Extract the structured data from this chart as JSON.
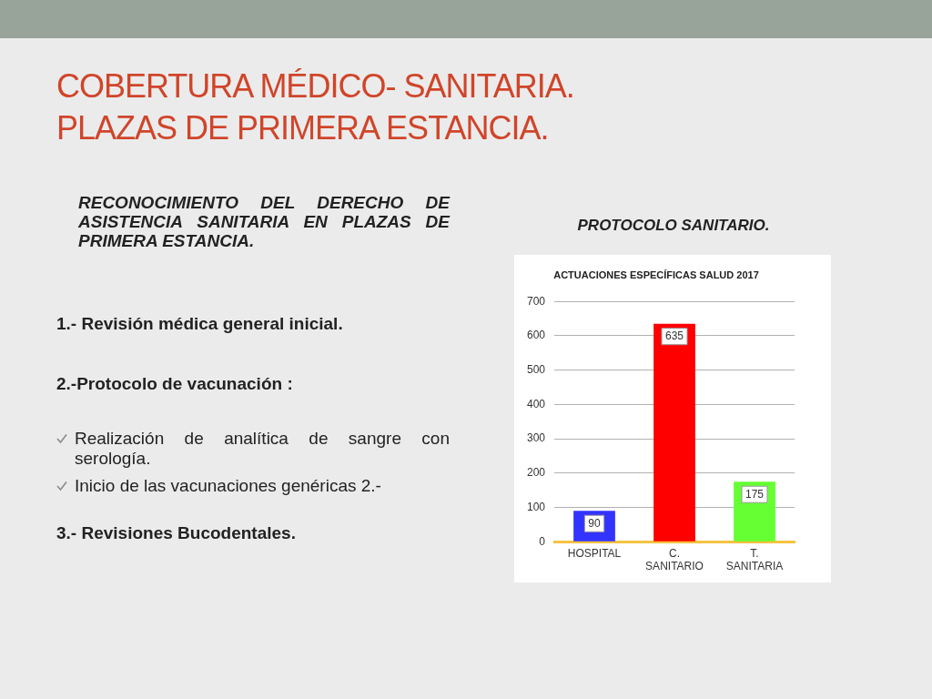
{
  "chart_data": {
    "type": "bar",
    "title": "ACTUACIONES ESPECÍFICAS SALUD 2017",
    "subtitle": "PROTOCOLO SANITARIO.",
    "categories": [
      "HOSPITAL",
      "C. SANITARIO",
      "T. SANITARIA"
    ],
    "values": [
      90,
      635,
      175
    ],
    "colors": [
      "#3333ff",
      "#ff0000",
      "#66ff33"
    ],
    "ylim": [
      0,
      700
    ],
    "yticks": [
      0,
      100,
      200,
      300,
      400,
      500,
      600,
      700
    ],
    "grid": "y",
    "data_labels": true,
    "annotations": [
      "COBERTURA MÉDICO- SANITARIA. PLAZAS DE PRIMERA ESTANCIA.",
      "RECONOCIMIENTO DEL DERECHO DE ASISTENCIA SANITARIA EN PLAZAS DE PRIMERA ESTANCIA.",
      "1.- Revisión médica general inicial.",
      "2.-Protocolo de vacunación :",
      "Realización de analítica de sangre con serología.",
      "Inicio de las vacunaciones genéricas  2.-",
      "3.- Revisiones Bucodentales."
    ]
  }
}
